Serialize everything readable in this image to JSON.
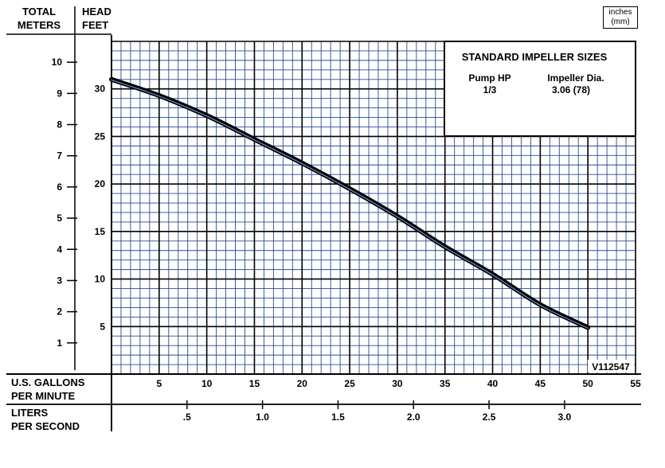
{
  "chart_data": {
    "type": "line",
    "title": "",
    "units_note": {
      "line1": "inches",
      "line2": "(mm)"
    },
    "y_left": {
      "header": [
        "TOTAL",
        "METERS"
      ],
      "ticks": [
        1,
        2,
        3,
        4,
        5,
        6,
        7,
        8,
        9,
        10
      ]
    },
    "y_right": {
      "header": [
        "HEAD",
        "FEET"
      ],
      "ticks": [
        5,
        10,
        15,
        20,
        25,
        30
      ],
      "ylim": [
        0,
        35
      ]
    },
    "x_gpm": {
      "label": [
        "U.S. GALLONS",
        "PER MINUTE"
      ],
      "ticks": [
        5,
        10,
        15,
        20,
        25,
        30,
        35,
        40,
        45,
        50,
        55
      ],
      "xlim": [
        0,
        55
      ]
    },
    "x_lps": {
      "label": [
        "LITERS",
        "PER SECOND"
      ],
      "ticks": [
        ".5",
        "1.0",
        "1.5",
        "2.0",
        "2.5",
        "3.0"
      ],
      "values": [
        0.5,
        1.0,
        1.5,
        2.0,
        2.5,
        3.0
      ]
    },
    "series": [
      {
        "x": [
          0,
          5,
          10,
          15,
          20,
          25,
          30,
          35,
          40,
          45,
          50
        ],
        "y": [
          31.0,
          29.3,
          27.2,
          24.7,
          22.2,
          19.5,
          16.6,
          13.4,
          10.5,
          7.3,
          4.9
        ]
      }
    ],
    "info_box": {
      "heading": "STANDARD IMPELLER SIZES",
      "col1_header": "Pump HP",
      "col2_header": "Impeller Dia.",
      "col1_value": "1/3",
      "col2_value": "3.06 (78)"
    },
    "code_label": "V112547",
    "grid": true,
    "colors": {
      "minor_grid": "#2a4b8c",
      "curve": "#000000",
      "curve_highlight": "#6a8fd0"
    }
  }
}
